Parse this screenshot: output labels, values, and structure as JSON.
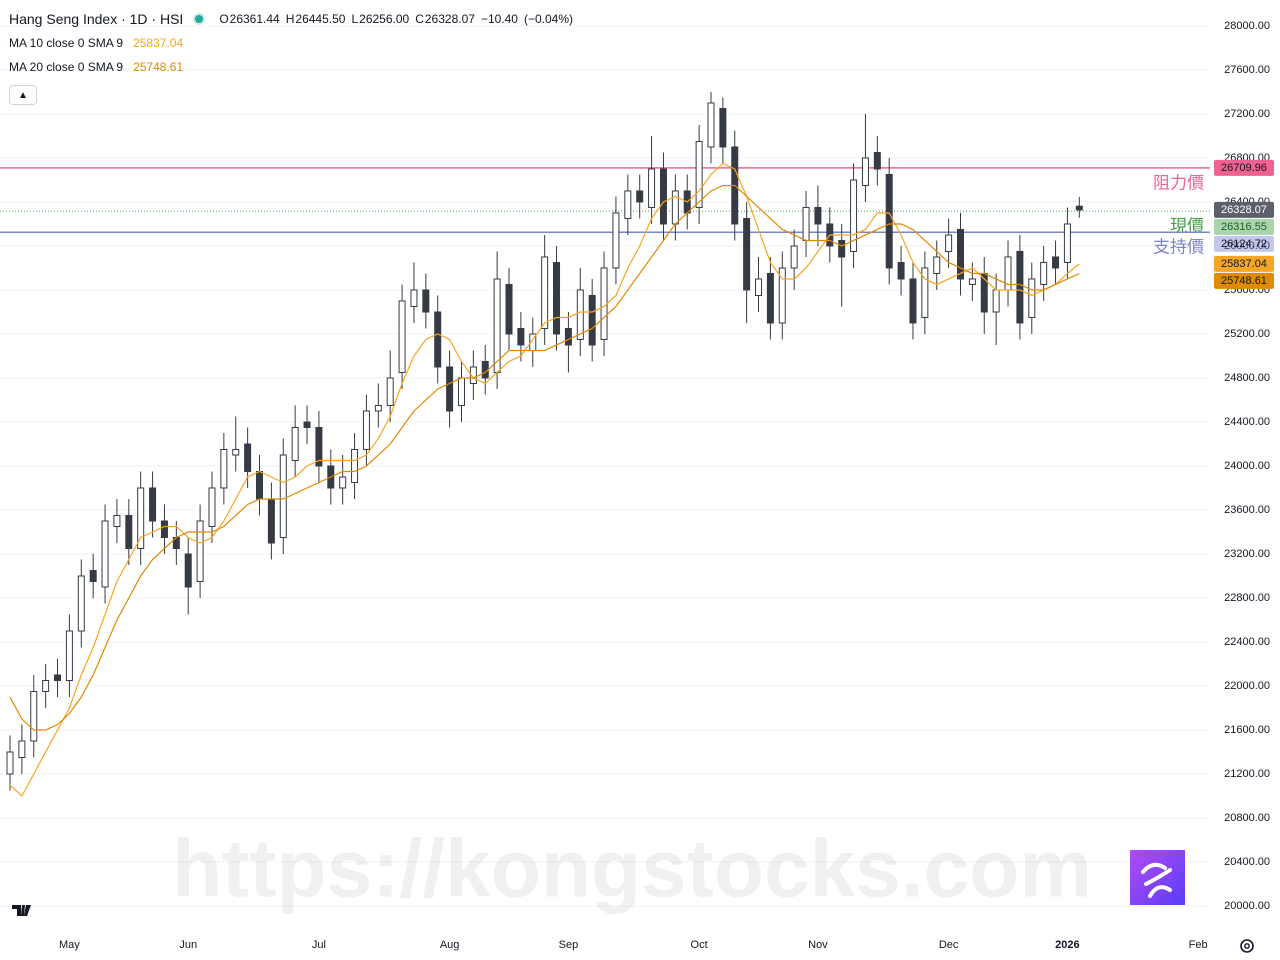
{
  "watermark": "https://kongstocks.com",
  "chart_data": {
    "type": "candlestick",
    "title": "Hang Seng Index · 1D · HSI",
    "legend_ohlc": [
      {
        "prefix": "O",
        "label": "26361.44"
      },
      {
        "prefix": "H",
        "label": "26445.50"
      },
      {
        "prefix": "L",
        "label": "26256.00"
      },
      {
        "prefix": "C",
        "label": "26328.07"
      }
    ],
    "change": {
      "value": -10.4,
      "label": "−10.40"
    },
    "change_pct": {
      "value": -0.04,
      "label": "(−0.04%)"
    },
    "up_color": "#ffffff",
    "down_color": "#363a45",
    "wick_color": "#363a45",
    "categories": [
      null,
      null,
      null,
      null,
      null,
      "May",
      null,
      null,
      null,
      null,
      null,
      null,
      null,
      null,
      null,
      "Jun",
      null,
      null,
      null,
      null,
      null,
      null,
      null,
      null,
      null,
      null,
      "Jul",
      null,
      null,
      null,
      null,
      null,
      null,
      null,
      null,
      null,
      null,
      "Aug",
      null,
      null,
      null,
      null,
      null,
      null,
      null,
      null,
      null,
      "Sep",
      null,
      null,
      null,
      null,
      null,
      null,
      null,
      null,
      null,
      null,
      "Oct",
      null,
      null,
      null,
      null,
      null,
      null,
      null,
      null,
      null,
      "Nov",
      null,
      null,
      null,
      null,
      null,
      null,
      null,
      null,
      null,
      null,
      "Dec",
      null,
      null,
      null,
      null,
      null,
      null,
      null,
      null,
      null,
      "2026",
      null,
      null,
      null,
      null,
      null,
      null,
      null,
      null,
      null,
      null,
      "Feb",
      null
    ],
    "open": [
      21200,
      21350,
      21500,
      21950,
      22100,
      22050,
      22500,
      23050,
      22900,
      23450,
      23550,
      23250,
      23800,
      23500,
      23350,
      23200,
      22950,
      23450,
      23800,
      24100,
      24200,
      23950,
      23700,
      23350,
      24050,
      24400,
      24350,
      24000,
      23800,
      23850,
      24150,
      24500,
      24550,
      24850,
      25450,
      25600,
      25400,
      24900,
      24550,
      24750,
      24950,
      24850,
      25650,
      25250,
      25050,
      25250,
      25850,
      25250,
      25150,
      25550,
      25150,
      25800,
      26250,
      26500,
      26350,
      26700,
      26200,
      26500,
      26350,
      26900,
      27250,
      26900,
      26250,
      25550,
      25750,
      25300,
      25800,
      26050,
      26350,
      26200,
      26050,
      25950,
      26550,
      26850,
      26650,
      25850,
      25700,
      25350,
      25750,
      25950,
      26150,
      25650,
      25750,
      25400,
      25600,
      25950,
      25350,
      25650,
      25900,
      25850,
      26361.44,
      null,
      null,
      null,
      null,
      null,
      null,
      null,
      null,
      null,
      null,
      null
    ],
    "high": [
      21550,
      21650,
      22100,
      22200,
      22250,
      22650,
      23150,
      23200,
      23650,
      23700,
      23700,
      23950,
      23950,
      23650,
      23500,
      23350,
      23650,
      23950,
      24300,
      24450,
      24350,
      24100,
      23850,
      24250,
      24550,
      24550,
      24500,
      24150,
      24100,
      24300,
      24650,
      24750,
      25050,
      25650,
      25850,
      25750,
      25550,
      25050,
      24950,
      25050,
      25100,
      25950,
      25800,
      25400,
      25350,
      26100,
      26000,
      25400,
      25800,
      25700,
      25950,
      26450,
      26650,
      26650,
      27000,
      26850,
      26650,
      26650,
      27100,
      27400,
      27350,
      27050,
      26400,
      25900,
      25900,
      25950,
      26150,
      26500,
      26550,
      26350,
      26200,
      26750,
      27200,
      27000,
      26800,
      26000,
      25850,
      25950,
      26050,
      26250,
      26300,
      25850,
      25900,
      25750,
      26050,
      26100,
      25850,
      26000,
      26050,
      26350,
      26445.5,
      null,
      null,
      null,
      null,
      null,
      null,
      null,
      null,
      null,
      null,
      null
    ],
    "low": [
      21050,
      21200,
      21350,
      21800,
      21900,
      21900,
      22350,
      22800,
      22750,
      23300,
      23100,
      23100,
      23350,
      23200,
      23100,
      22650,
      22800,
      23300,
      23650,
      23950,
      23800,
      23550,
      23150,
      23200,
      23900,
      24200,
      23850,
      23650,
      23650,
      23700,
      24000,
      24350,
      24400,
      24700,
      25300,
      25250,
      24750,
      24350,
      24400,
      24600,
      24650,
      24700,
      25050,
      24950,
      24900,
      25100,
      25050,
      24850,
      25000,
      24950,
      25000,
      25650,
      26100,
      26250,
      26200,
      26050,
      26050,
      26150,
      26200,
      26750,
      26750,
      26050,
      25300,
      25400,
      25150,
      25150,
      25600,
      25900,
      26000,
      25850,
      25450,
      25800,
      26400,
      26550,
      25650,
      25550,
      25150,
      25200,
      25600,
      25800,
      25550,
      25500,
      25200,
      25100,
      25450,
      25150,
      25200,
      25500,
      25650,
      25700,
      26256,
      null,
      null,
      null,
      null,
      null,
      null,
      null,
      null,
      null,
      null,
      null
    ],
    "close": [
      21400,
      21500,
      21950,
      22050,
      22050,
      22500,
      23000,
      22950,
      23500,
      23550,
      23250,
      23800,
      23500,
      23350,
      23250,
      22900,
      23500,
      23800,
      24150,
      24150,
      23950,
      23700,
      23300,
      24100,
      24350,
      24350,
      24000,
      23800,
      23900,
      24150,
      24500,
      24550,
      24800,
      25500,
      25600,
      25400,
      24900,
      24500,
      24800,
      24900,
      24800,
      25700,
      25200,
      25100,
      25200,
      25900,
      25200,
      25100,
      25600,
      25100,
      25800,
      26300,
      26500,
      26400,
      26700,
      26200,
      26500,
      26300,
      26950,
      27300,
      26900,
      26200,
      25600,
      25700,
      25300,
      25800,
      26000,
      26350,
      26200,
      26000,
      25900,
      26600,
      26800,
      26700,
      25800,
      25700,
      25300,
      25800,
      25900,
      26100,
      25700,
      25700,
      25400,
      25600,
      25900,
      25300,
      25700,
      25850,
      25800,
      26200,
      26328.07,
      null,
      null,
      null,
      null,
      null,
      null,
      null,
      null,
      null,
      null,
      null
    ],
    "series": [
      {
        "name": "MA 10 close 0 SMA 9",
        "color": "#f5a623",
        "values": [
          21100,
          21000,
          21200,
          21400,
          21600,
          21800,
          22100,
          22350,
          22650,
          22950,
          23150,
          23350,
          23400,
          23450,
          23450,
          23350,
          23300,
          23350,
          23500,
          23700,
          23900,
          23950,
          23900,
          23850,
          23900,
          24000,
          24050,
          24050,
          24050,
          24050,
          24100,
          24250,
          24450,
          24750,
          25000,
          25150,
          25200,
          25150,
          24950,
          24800,
          24750,
          24850,
          24950,
          25000,
          25150,
          25300,
          25350,
          25350,
          25400,
          25400,
          25450,
          25550,
          25800,
          26000,
          26250,
          26400,
          26450,
          26400,
          26500,
          26650,
          26750,
          26700,
          26450,
          26150,
          25850,
          25700,
          25700,
          25800,
          25950,
          26100,
          26100,
          26100,
          26150,
          26300,
          26300,
          26100,
          25850,
          25700,
          25650,
          25700,
          25750,
          25800,
          25700,
          25600,
          25600,
          25600,
          25550,
          25600,
          25650,
          25750,
          25837.04,
          null,
          null,
          null,
          null,
          null,
          null,
          null,
          null,
          null,
          null,
          null
        ]
      },
      {
        "name": "MA 20 close 0 SMA 9",
        "color": "#e08a00",
        "values": [
          21900,
          21700,
          21600,
          21600,
          21650,
          21750,
          21900,
          22100,
          22350,
          22600,
          22800,
          23000,
          23150,
          23250,
          23350,
          23400,
          23400,
          23400,
          23450,
          23550,
          23650,
          23700,
          23700,
          23700,
          23750,
          23800,
          23850,
          23900,
          23950,
          23950,
          24000,
          24100,
          24200,
          24350,
          24500,
          24600,
          24700,
          24750,
          24800,
          24800,
          24850,
          24950,
          25050,
          25050,
          25050,
          25050,
          25100,
          25150,
          25200,
          25250,
          25350,
          25450,
          25600,
          25750,
          25900,
          26050,
          26200,
          26300,
          26400,
          26500,
          26550,
          26550,
          26450,
          26350,
          26250,
          26150,
          26100,
          26050,
          26050,
          26050,
          26000,
          26050,
          26100,
          26150,
          26200,
          26200,
          26150,
          26050,
          25950,
          25850,
          25800,
          25750,
          25750,
          25700,
          25650,
          25650,
          25600,
          25600,
          25650,
          25700,
          25748.61,
          null,
          null,
          null,
          null,
          null,
          null,
          null,
          null,
          null,
          null,
          null
        ]
      }
    ],
    "levels": [
      {
        "name": "阻力價",
        "value": 26709.96,
        "color": "#f06292",
        "style": "solid"
      },
      {
        "name": "現價",
        "value": 26316.55,
        "color": "#43a047",
        "style": "dotted"
      },
      {
        "name": "支持價",
        "value": 26124.72,
        "color": "#7986cb",
        "style": "solid"
      }
    ],
    "last_price_color": "#5d606b",
    "ylim": [
      19782,
      28236
    ],
    "yticks": [
      {
        "value": 20000,
        "label": "20000.00"
      },
      {
        "value": 20400,
        "label": "20400.00"
      },
      {
        "value": 20800,
        "label": "20800.00"
      },
      {
        "value": 21200,
        "label": "21200.00"
      },
      {
        "value": 21600,
        "label": "21600.00"
      },
      {
        "value": 22000,
        "label": "22000.00"
      },
      {
        "value": 22400,
        "label": "22400.00"
      },
      {
        "value": 22800,
        "label": "22800.00"
      },
      {
        "value": 23200,
        "label": "23200.00"
      },
      {
        "value": 23600,
        "label": "23600.00"
      },
      {
        "value": 24000,
        "label": "24000.00"
      },
      {
        "value": 24400,
        "label": "24400.00"
      },
      {
        "value": 24800,
        "label": "24800.00"
      },
      {
        "value": 25200,
        "label": "25200.00"
      },
      {
        "value": 25600,
        "label": "25600.00"
      },
      {
        "value": 26000,
        "label": "26000.00"
      },
      {
        "value": 26400,
        "label": "26400.00"
      },
      {
        "value": 26800,
        "label": "26800.00"
      },
      {
        "value": 27200,
        "label": "27200.00"
      },
      {
        "value": 27600,
        "label": "27600.00"
      },
      {
        "value": 28000,
        "label": "28000.00"
      }
    ],
    "grid": true
  }
}
